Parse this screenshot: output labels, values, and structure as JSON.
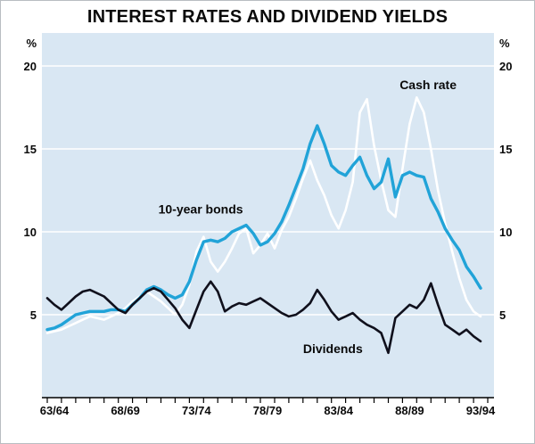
{
  "title": "INTEREST RATES AND DIVIDEND YIELDS",
  "y_axis": {
    "unit_left": "%",
    "unit_right": "%",
    "tick_labels": [
      "20",
      "15",
      "10",
      "5"
    ]
  },
  "x_axis": {
    "tick_labels": [
      "63/64",
      "68/69",
      "73/74",
      "78/79",
      "83/84",
      "88/89",
      "93/94"
    ]
  },
  "chart_data": {
    "type": "line",
    "title": "INTEREST RATES AND DIVIDEND YIELDS",
    "x_start": 1963.5,
    "x_step": 0.5,
    "x_range": [
      1963.5,
      1994.5
    ],
    "ylim": [
      0,
      22
    ],
    "yticks": [
      5,
      10,
      15,
      20
    ],
    "grid": true,
    "legend_position": "inline-annotations",
    "plot_background": "#d9e7f3",
    "grid_color": "#ffffff",
    "axis_color": "#000000",
    "x_tick_interval_labels": [
      "63/64",
      "68/69",
      "73/74",
      "78/79",
      "83/84",
      "88/89",
      "93/94"
    ],
    "series": [
      {
        "name": "Cash rate",
        "color": "#ffffff",
        "stroke_width": 2.6,
        "label_pos": {
          "x": 1990.3,
          "y": 18.6
        },
        "values": [
          3.9,
          4.0,
          4.1,
          4.3,
          4.5,
          4.7,
          4.9,
          4.8,
          4.7,
          4.9,
          5.1,
          5.4,
          5.8,
          6.1,
          6.4,
          6.1,
          5.8,
          5.4,
          5.0,
          5.6,
          6.8,
          8.8,
          9.7,
          8.2,
          7.6,
          8.2,
          9.0,
          9.9,
          10.2,
          8.7,
          9.2,
          9.9,
          9.0,
          10.1,
          10.9,
          12.0,
          13.2,
          14.3,
          13.1,
          12.2,
          11.0,
          10.2,
          11.3,
          13.0,
          17.2,
          18.0,
          15.2,
          13.1,
          11.3,
          10.9,
          13.8,
          16.5,
          18.1,
          17.2,
          15.0,
          12.5,
          10.5,
          8.8,
          7.2,
          5.9,
          5.2,
          4.9
        ]
      },
      {
        "name": "10-year bonds",
        "color": "#21a3d8",
        "stroke_width": 3.4,
        "label_pos": {
          "x": 1974.3,
          "y": 11.1
        },
        "values": [
          4.1,
          4.2,
          4.4,
          4.7,
          5.0,
          5.1,
          5.2,
          5.2,
          5.2,
          5.3,
          5.3,
          5.2,
          5.6,
          6.0,
          6.5,
          6.7,
          6.5,
          6.2,
          6.0,
          6.2,
          7.0,
          8.3,
          9.4,
          9.5,
          9.4,
          9.6,
          10.0,
          10.2,
          10.4,
          9.9,
          9.2,
          9.4,
          9.9,
          10.6,
          11.6,
          12.7,
          13.8,
          15.3,
          16.4,
          15.3,
          14.0,
          13.6,
          13.4,
          14.0,
          14.5,
          13.4,
          12.6,
          13.0,
          14.4,
          12.1,
          13.4,
          13.6,
          13.4,
          13.3,
          12.0,
          11.2,
          10.2,
          9.5,
          8.9,
          7.9,
          7.3,
          6.6
        ]
      },
      {
        "name": "Dividends",
        "color": "#10101c",
        "stroke_width": 2.6,
        "label_pos": {
          "x": 1983.6,
          "y": 2.7
        },
        "values": [
          6.0,
          5.6,
          5.3,
          5.7,
          6.1,
          6.4,
          6.5,
          6.3,
          6.1,
          5.7,
          5.3,
          5.1,
          5.6,
          6.0,
          6.4,
          6.6,
          6.4,
          5.9,
          5.4,
          4.7,
          4.2,
          5.3,
          6.4,
          7.0,
          6.4,
          5.2,
          5.5,
          5.7,
          5.6,
          5.8,
          6.0,
          5.7,
          5.4,
          5.1,
          4.9,
          5.0,
          5.3,
          5.7,
          6.5,
          5.9,
          5.2,
          4.7,
          4.9,
          5.1,
          4.7,
          4.4,
          4.2,
          3.9,
          2.7,
          4.8,
          5.2,
          5.6,
          5.4,
          5.9,
          6.9,
          5.6,
          4.4,
          4.1,
          3.8,
          4.1,
          3.7,
          3.4
        ]
      }
    ]
  }
}
